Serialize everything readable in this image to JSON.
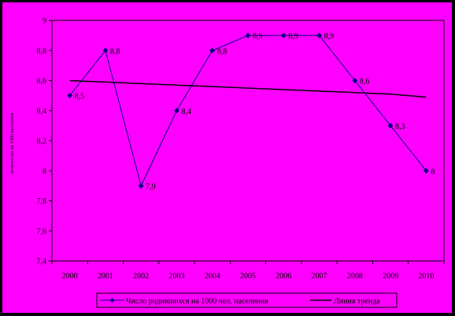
{
  "chart_data": {
    "type": "line",
    "title": "",
    "xlabel": "",
    "ylabel": "количество на 1000 населения",
    "categories": [
      "2000",
      "2001",
      "2002",
      "2003",
      "2004",
      "2005",
      "2006",
      "2007",
      "2008",
      "2009",
      "2010"
    ],
    "ylim": [
      7.4,
      9
    ],
    "yticks": [
      7.4,
      7.6,
      7.8,
      8,
      8.2,
      8.4,
      8.6,
      8.8,
      9
    ],
    "ytick_labels": [
      "7,4",
      "7,6",
      "7,8",
      "8",
      "8,2",
      "8,4",
      "8,6",
      "8,8",
      "9"
    ],
    "grid": false,
    "legend": "bottom",
    "series": [
      {
        "name": "Число родившихся на 1000 чел. населения",
        "values": [
          8.5,
          8.8,
          7.9,
          8.4,
          8.8,
          8.9,
          8.9,
          8.9,
          8.6,
          8.3,
          8.0
        ],
        "labels": [
          "8,5",
          "8,8",
          "7,9",
          "8,4",
          "8,8",
          "8,9",
          "8,9",
          "8,9",
          "8,6",
          "8,3",
          "8"
        ],
        "marker": "diamond",
        "color": "#000080"
      },
      {
        "name": "Линия тренда",
        "values": [
          8.6,
          8.59,
          8.58,
          8.57,
          8.56,
          8.55,
          8.54,
          8.53,
          8.52,
          8.51,
          8.49
        ],
        "color": "#000000"
      }
    ],
    "colors": {
      "plot_background": "#ff00ff",
      "frame": "#000000",
      "axis": "#000000"
    }
  }
}
